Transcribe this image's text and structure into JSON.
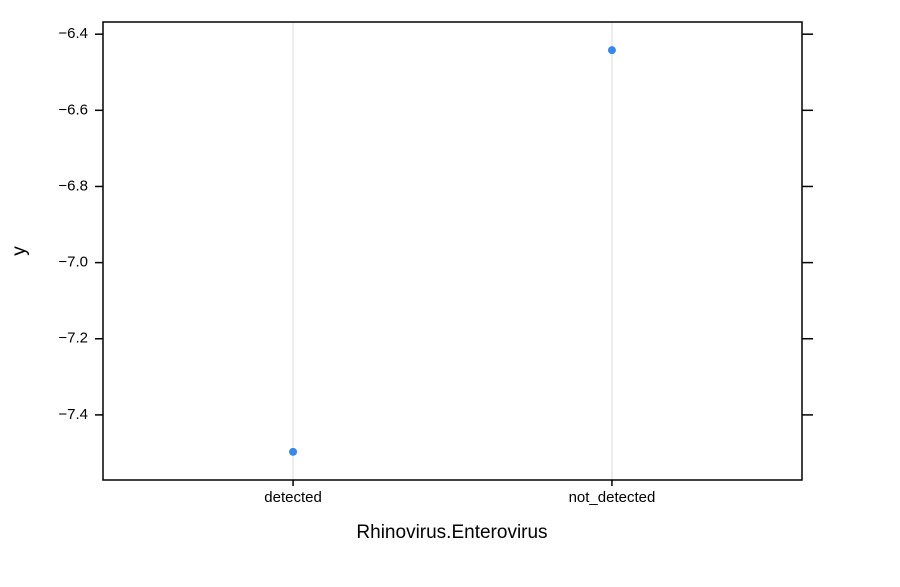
{
  "chart_data": {
    "type": "dot",
    "x_label": "Rhinovirus.Enterovirus",
    "y_label": "y",
    "categories": [
      "detected",
      "not_detected"
    ],
    "values": [
      -7.497,
      -6.442
    ],
    "color": "#3b87e8",
    "ylim": [
      -7.571,
      -6.368
    ],
    "yticks": [
      {
        "value": -6.4,
        "label": "−6.4"
      },
      {
        "value": -6.6,
        "label": "−6.6"
      },
      {
        "value": -6.8,
        "label": "−6.8"
      },
      {
        "value": -7.0,
        "label": "−7.0"
      },
      {
        "value": -7.2,
        "label": "−7.2"
      },
      {
        "value": -7.4,
        "label": "−7.4"
      }
    ],
    "grid": true
  }
}
